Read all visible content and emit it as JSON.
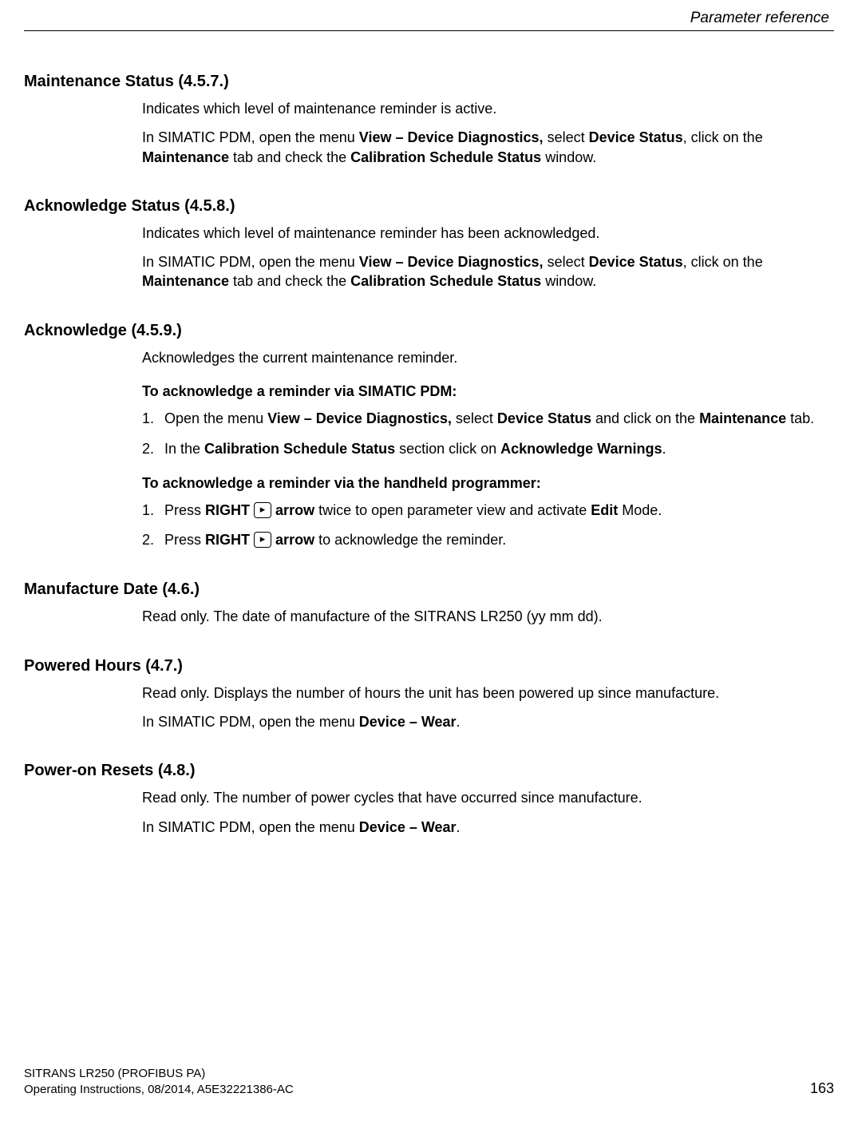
{
  "header": {
    "chapter": "Parameter reference"
  },
  "sections": {
    "s1": {
      "title": "Maintenance Status (4.5.7.)",
      "p1": "Indicates which level of maintenance reminder is active.",
      "p2a": "In SIMATIC PDM, open the menu ",
      "p2b1": "View – Device Diagnostics,",
      "p2c": " select ",
      "p2b2": "Device Status",
      "p2d": ", click on the ",
      "p2b3": "Maintenance",
      "p2e": " tab and check the ",
      "p2b4": "Calibration Schedule Status",
      "p2f": " window."
    },
    "s2": {
      "title": "Acknowledge Status (4.5.8.)",
      "p1": "Indicates which level of maintenance reminder has been acknowledged.",
      "p2a": "In SIMATIC PDM, open the menu ",
      "p2b1": "View – Device Diagnostics,",
      "p2c": " select ",
      "p2b2": "Device Status",
      "p2d": ", click on the ",
      "p2b3": "Maintenance",
      "p2e": " tab and check the ",
      "p2b4": "Calibration Schedule Status",
      "p2f": " window."
    },
    "s3": {
      "title": "Acknowledge (4.5.9.)",
      "p1": "Acknowledges the current maintenance reminder.",
      "sub1": "To acknowledge a reminder via SIMATIC PDM:",
      "ol1": {
        "i1a": "Open the menu ",
        "i1b1": "View – Device Diagnostics,",
        "i1c": " select ",
        "i1b2": "Device Status",
        "i1d": " and click on the ",
        "i1b3": "Maintenance",
        "i1e": " tab.",
        "i2a": "In the ",
        "i2b1": "Calibration Schedule Status",
        "i2c": " section click on ",
        "i2b2": "Acknowledge Warnings",
        "i2d": "."
      },
      "sub2": "To acknowledge a reminder via the handheld programmer:",
      "ol2": {
        "i1a": "Press ",
        "i1b1": "RIGHT",
        "i1key": "▸",
        "i1b2": "arrow",
        "i1c": " twice to open parameter view and activate ",
        "i1b3": "Edit",
        "i1d": " Mode.",
        "i2a": "Press ",
        "i2b1": "RIGHT",
        "i2key": "▸",
        "i2b2": "arrow",
        "i2c": " to acknowledge the reminder."
      }
    },
    "s4": {
      "title": "Manufacture Date (4.6.)",
      "p1": "Read only. The date of manufacture of the SITRANS LR250 (yy mm dd)."
    },
    "s5": {
      "title": "Powered Hours (4.7.)",
      "p1": "Read only. Displays the number of hours the unit has been powered up since manufacture.",
      "p2a": "In SIMATIC PDM, open the menu ",
      "p2b1": "Device – Wear",
      "p2c": "."
    },
    "s6": {
      "title": "Power-on Resets (4.8.)",
      "p1": "Read only. The number of power cycles that have occurred since manufacture.",
      "p2a": "In SIMATIC PDM, open the menu ",
      "p2b1": "Device – Wear",
      "p2c": "."
    }
  },
  "footer": {
    "line1": "SITRANS LR250 (PROFIBUS PA)",
    "line2": "Operating Instructions, 08/2014, A5E32221386-AC",
    "page": "163"
  }
}
